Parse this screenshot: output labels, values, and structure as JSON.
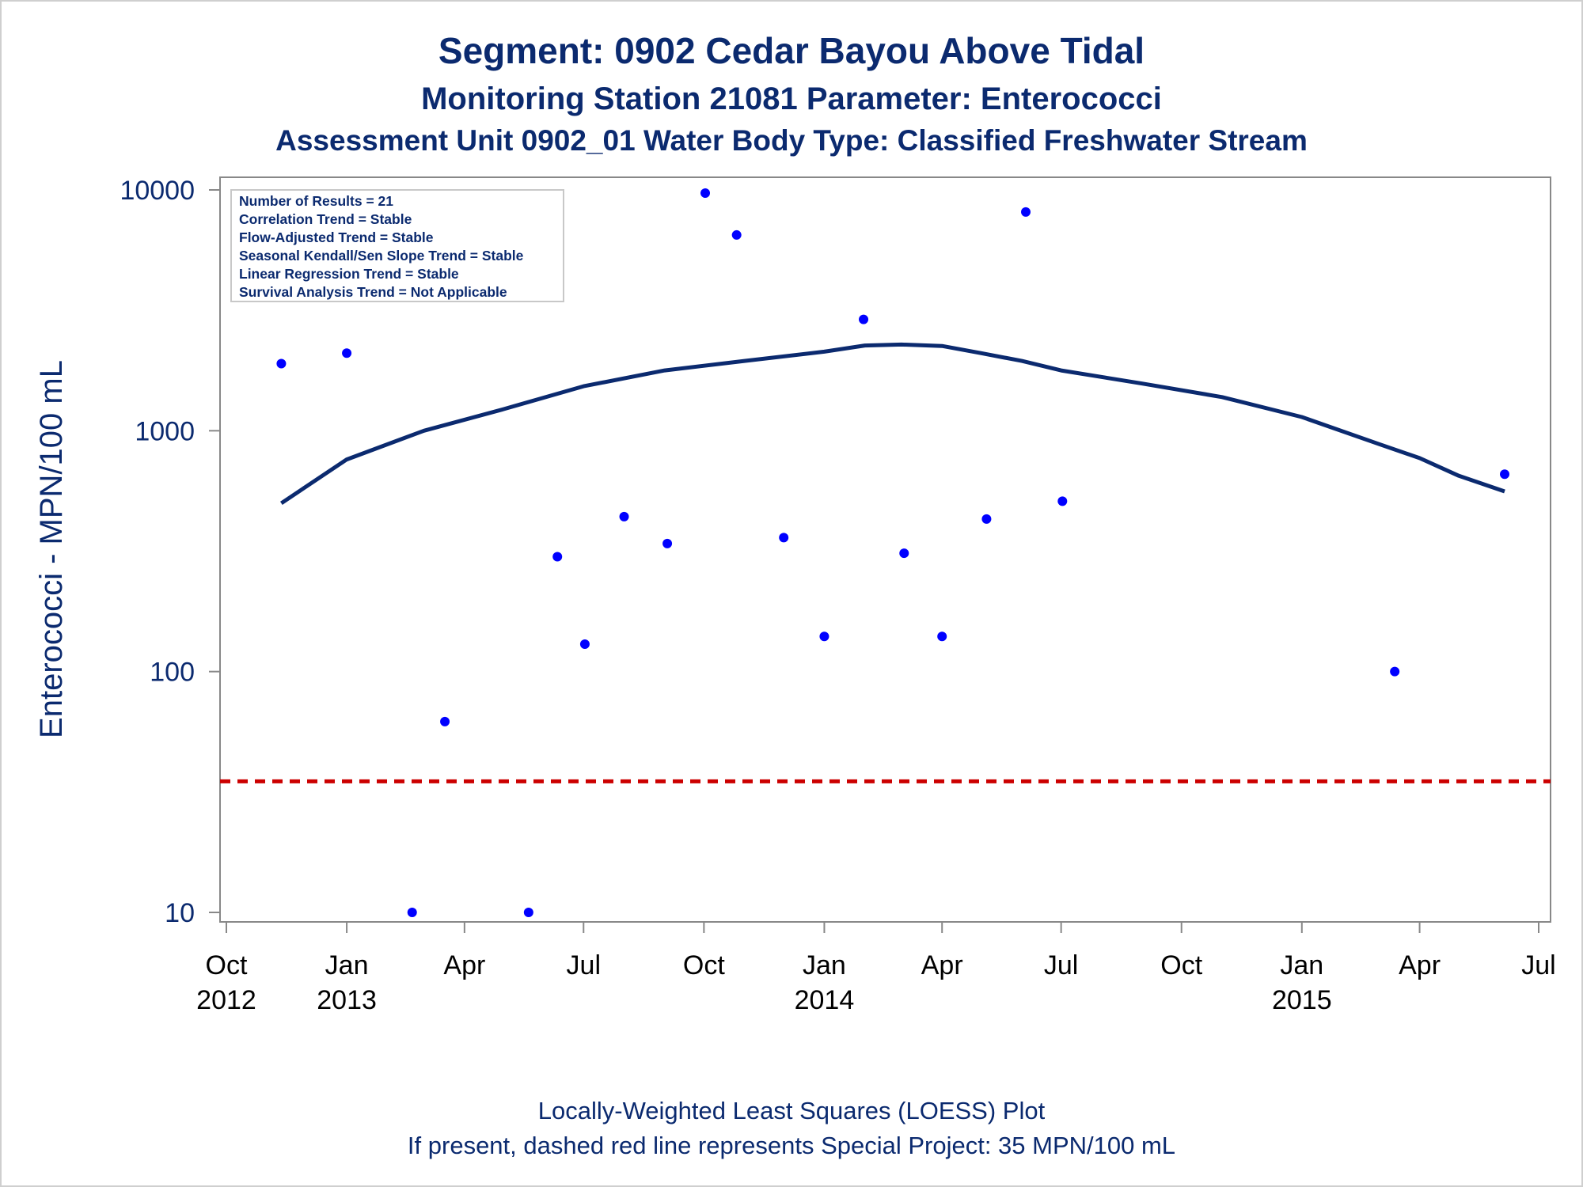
{
  "titles": {
    "line1": "Segment: 0902  Cedar Bayou Above Tidal",
    "line2": "Monitoring Station 21081 Parameter: Enterococci",
    "line3": "Assessment Unit 0902_01   Water Body Type: Classified Freshwater Stream"
  },
  "stats_box": [
    "Number of Results = 21",
    "Correlation Trend = Stable",
    "Flow-Adjusted Trend = Stable",
    "Seasonal Kendall/Sen Slope Trend = Stable",
    "Linear Regression Trend = Stable",
    "Survival Analysis Trend = Not Applicable"
  ],
  "footnotes": {
    "line1": "Locally-Weighted Least Squares (LOESS) Plot",
    "line2": "If present, dashed red line represents Special Project: 35 MPN/100 mL"
  },
  "colors": {
    "text": "#0b2a6f",
    "points": "#0000ff",
    "loess": "#0b2a6f",
    "reference": "#cc0000",
    "axis": "#888888"
  },
  "chart_data": {
    "type": "scatter",
    "ylabel": "Enterococci - MPN/100 mL",
    "yscale": "log",
    "ylim": [
      10,
      10000
    ],
    "yticks": [
      {
        "value": 10,
        "label": "10"
      },
      {
        "value": 100,
        "label": "100"
      },
      {
        "value": 1000,
        "label": "1000"
      },
      {
        "value": 10000,
        "label": "10000"
      }
    ],
    "xlim": [
      "2012-10-01",
      "2015-07-01"
    ],
    "xticks": [
      {
        "date": "2012-10-01",
        "label": "Oct",
        "year": "2012"
      },
      {
        "date": "2013-01-01",
        "label": "Jan",
        "year": "2013"
      },
      {
        "date": "2013-04-01",
        "label": "Apr",
        "year": ""
      },
      {
        "date": "2013-07-01",
        "label": "Jul",
        "year": ""
      },
      {
        "date": "2013-10-01",
        "label": "Oct",
        "year": ""
      },
      {
        "date": "2014-01-01",
        "label": "Jan",
        "year": "2014"
      },
      {
        "date": "2014-04-01",
        "label": "Apr",
        "year": ""
      },
      {
        "date": "2014-07-01",
        "label": "Jul",
        "year": ""
      },
      {
        "date": "2014-10-01",
        "label": "Oct",
        "year": ""
      },
      {
        "date": "2015-01-01",
        "label": "Jan",
        "year": "2015"
      },
      {
        "date": "2015-04-01",
        "label": "Apr",
        "year": ""
      },
      {
        "date": "2015-07-01",
        "label": "Jul",
        "year": ""
      }
    ],
    "points": [
      {
        "date": "2012-11-12",
        "value": 1900
      },
      {
        "date": "2013-01-01",
        "value": 2100
      },
      {
        "date": "2013-02-20",
        "value": 10
      },
      {
        "date": "2013-03-17",
        "value": 62
      },
      {
        "date": "2013-05-20",
        "value": 10
      },
      {
        "date": "2013-06-11",
        "value": 300
      },
      {
        "date": "2013-07-02",
        "value": 130
      },
      {
        "date": "2013-08-01",
        "value": 440
      },
      {
        "date": "2013-09-03",
        "value": 340
      },
      {
        "date": "2013-10-02",
        "value": 9700
      },
      {
        "date": "2013-10-26",
        "value": 6500
      },
      {
        "date": "2013-12-01",
        "value": 360
      },
      {
        "date": "2014-01-01",
        "value": 140
      },
      {
        "date": "2014-01-31",
        "value": 2900
      },
      {
        "date": "2014-03-03",
        "value": 310
      },
      {
        "date": "2014-04-01",
        "value": 140
      },
      {
        "date": "2014-05-05",
        "value": 430
      },
      {
        "date": "2014-06-04",
        "value": 8100
      },
      {
        "date": "2014-07-02",
        "value": 510
      },
      {
        "date": "2015-03-13",
        "value": 100
      },
      {
        "date": "2015-06-05",
        "value": 660
      }
    ],
    "loess": [
      {
        "date": "2012-11-12",
        "value": 500
      },
      {
        "date": "2013-01-01",
        "value": 760
      },
      {
        "date": "2013-03-01",
        "value": 1000
      },
      {
        "date": "2013-05-01",
        "value": 1230
      },
      {
        "date": "2013-07-01",
        "value": 1530
      },
      {
        "date": "2013-09-01",
        "value": 1780
      },
      {
        "date": "2013-11-01",
        "value": 1950
      },
      {
        "date": "2014-01-01",
        "value": 2130
      },
      {
        "date": "2014-02-01",
        "value": 2260
      },
      {
        "date": "2014-03-01",
        "value": 2280
      },
      {
        "date": "2014-04-01",
        "value": 2250
      },
      {
        "date": "2014-05-01",
        "value": 2100
      },
      {
        "date": "2014-06-01",
        "value": 1950
      },
      {
        "date": "2014-07-01",
        "value": 1780
      },
      {
        "date": "2014-09-01",
        "value": 1570
      },
      {
        "date": "2014-11-01",
        "value": 1380
      },
      {
        "date": "2015-01-01",
        "value": 1140
      },
      {
        "date": "2015-03-01",
        "value": 880
      },
      {
        "date": "2015-04-01",
        "value": 770
      },
      {
        "date": "2015-05-01",
        "value": 650
      },
      {
        "date": "2015-06-05",
        "value": 560
      }
    ],
    "reference_line": {
      "value": 35,
      "style": "dashed"
    }
  }
}
